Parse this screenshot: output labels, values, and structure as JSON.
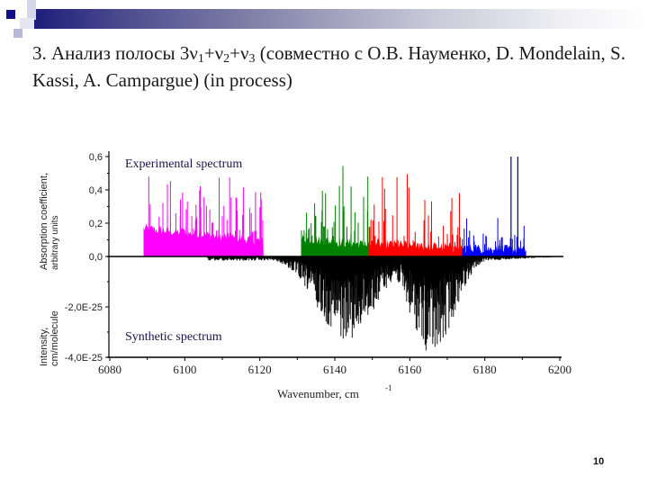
{
  "slide": {
    "title_prefix": "3. Анализ полосы 3ν",
    "title_sub1": "1",
    "title_mid1": "+ν",
    "title_sub2": "2",
    "title_mid2": "+ν",
    "title_sub3": "3",
    "title_suffix": " (совместно с О.В. Науменко, D. Mondelain, S. Kassi, A. Campargue) (in process)",
    "slide_number": "10"
  },
  "chart_data": {
    "type": "line",
    "title": "",
    "xlabel": "Wavenumber, cm",
    "xlabel_sup": "-1",
    "xlim": [
      6080,
      6200
    ],
    "x_ticks": [
      "6080",
      "6100",
      "6120",
      "6140",
      "6160",
      "6180",
      "6200"
    ],
    "upper_panel": {
      "annotation": "Experimental spectrum",
      "ylabel_line1": "Absorption coefficient,",
      "ylabel_line2": "arbitrary units",
      "ylim": [
        0,
        0.6
      ],
      "y_ticks": [
        "0,6",
        "0,4",
        "0,2",
        "0,0"
      ],
      "series": [
        {
          "name": "segment-1",
          "color": "#ff00ff",
          "x_range": [
            6089,
            6121
          ],
          "baseline": 0.14,
          "peak_max": 0.55
        },
        {
          "name": "segment-2",
          "color": "#008000",
          "x_range": [
            6131,
            6151
          ],
          "baseline": 0.08,
          "peak_max": 0.58
        },
        {
          "name": "segment-3",
          "color": "#ff0000",
          "x_range": [
            6149,
            6174
          ],
          "baseline": 0.05,
          "peak_max": 0.6
        },
        {
          "name": "segment-4",
          "color": "#0000ff",
          "x_range": [
            6174,
            6191
          ],
          "baseline": 0.02,
          "peak_max": 0.28
        },
        {
          "name": "segment-4-lines",
          "color": "#000080",
          "x_points": [
            6187.0,
            6188.8
          ],
          "heights": [
            0.6,
            0.6
          ]
        }
      ]
    },
    "lower_panel": {
      "annotation": "Synthetic spectrum",
      "ylabel_line1": "Intensity,",
      "ylabel_line2": "cm/molecule",
      "ylim": [
        -4e-25,
        0
      ],
      "y_ticks": [
        "-2,0E-25",
        "-4,0E-25"
      ],
      "series": [
        {
          "name": "synthetic",
          "color": "#000000",
          "x_range": [
            6106,
            6200
          ],
          "envelope_peaks": [
            {
              "x": 6143,
              "depth": 3e-25
            },
            {
              "x": 6166,
              "depth": 3.6e-25
            }
          ]
        }
      ]
    }
  }
}
